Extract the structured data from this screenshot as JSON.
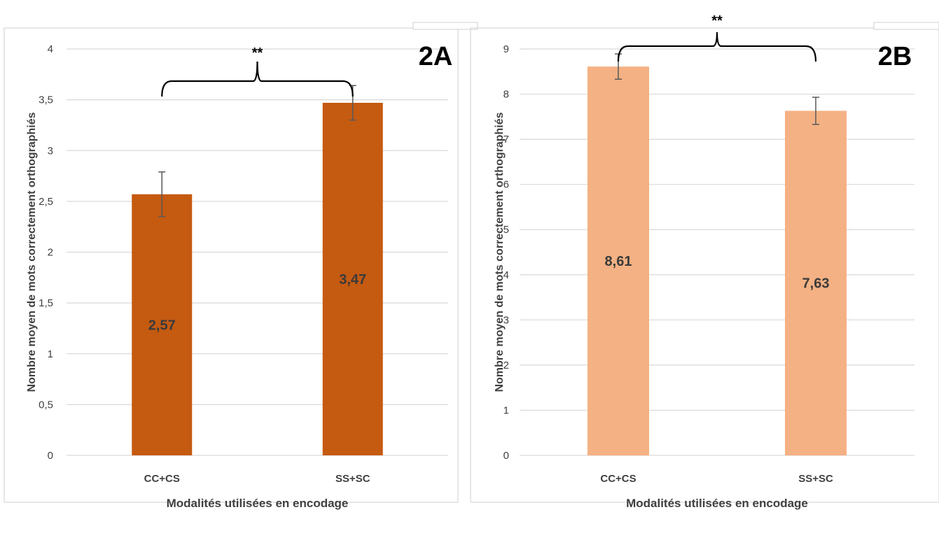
{
  "chart_data": [
    {
      "type": "bar",
      "panel_label": "2A",
      "categories": [
        "CC+CS",
        "SS+SC"
      ],
      "values": [
        2.57,
        3.47
      ],
      "value_labels": [
        "2,57",
        "3,47"
      ],
      "error_bars": [
        [
          2.35,
          2.79
        ],
        [
          3.3,
          3.64
        ]
      ],
      "ylim": [
        0,
        4
      ],
      "yticks": [
        0,
        0.5,
        1,
        1.5,
        2,
        2.5,
        3,
        3.5,
        4
      ],
      "ytick_labels": [
        "0",
        "0,5",
        "1",
        "1,5",
        "2",
        "2,5",
        "3",
        "3,5",
        "4"
      ],
      "xlabel": "Modalités utilisées en encodage",
      "ylabel": "Nombre moyen de mots correctement orthographiés",
      "significance": "**",
      "bar_color": "#c55a11",
      "grid": true
    },
    {
      "type": "bar",
      "panel_label": "2B",
      "categories": [
        "CC+CS",
        "SS+SC"
      ],
      "values": [
        8.61,
        7.63
      ],
      "value_labels": [
        "8,61",
        "7,63"
      ],
      "error_bars": [
        [
          8.33,
          8.89
        ],
        [
          7.33,
          7.93
        ]
      ],
      "ylim": [
        0,
        9
      ],
      "yticks": [
        0,
        1,
        2,
        3,
        4,
        5,
        6,
        7,
        8,
        9
      ],
      "ytick_labels": [
        "0",
        "1",
        "2",
        "3",
        "4",
        "5",
        "6",
        "7",
        "8",
        "9"
      ],
      "xlabel": "Modalités utilisées en encodage",
      "ylabel": "Nombre moyen de mots correctement orthographiés",
      "significance": "**",
      "bar_color": "#f4b183",
      "grid": true
    }
  ]
}
